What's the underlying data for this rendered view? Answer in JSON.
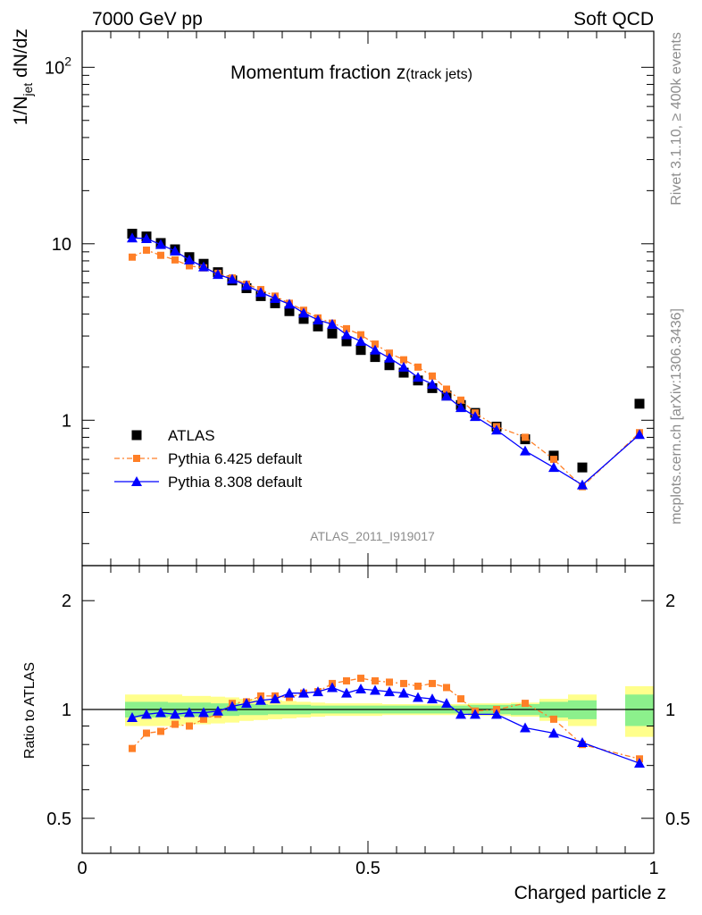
{
  "header": {
    "left": "7000 GeV pp",
    "right": "Soft QCD",
    "side_top": "Rivet 3.1.10, ≥ 400k events",
    "side_bottom": "mcplots.cern.ch [arXiv:1306.3436]"
  },
  "chart_data": [
    {
      "type": "scatter",
      "title": "Momentum fraction",
      "title_var": "z",
      "title_sub": "(track jets)",
      "ylabel_main": "1/N",
      "ylabel_sub": "jet",
      "ylabel_tail": " dN/dz",
      "yscale": "log",
      "ylim": [
        0.15,
        160
      ],
      "xlim": [
        0,
        1
      ],
      "ytick_labels": [
        {
          "value": 1,
          "label": "1"
        },
        {
          "value": 10,
          "label": "10"
        },
        {
          "value": 100,
          "label": "10",
          "sup": "2"
        }
      ],
      "analysis_label": "ATLAS_2011_I919017",
      "legend_position": "left-middle",
      "series": [
        {
          "name": "ATLAS",
          "color": "#000000",
          "marker": "square",
          "x": [
            0.0875,
            0.1125,
            0.1375,
            0.1625,
            0.1875,
            0.2125,
            0.2375,
            0.2625,
            0.2875,
            0.3125,
            0.3375,
            0.3625,
            0.3875,
            0.4125,
            0.4375,
            0.4625,
            0.4875,
            0.5125,
            0.5375,
            0.5625,
            0.5875,
            0.6125,
            0.6375,
            0.6625,
            0.6875,
            0.725,
            0.775,
            0.825,
            0.875,
            0.975
          ],
          "y": [
            11.4,
            11.0,
            10.1,
            9.3,
            8.4,
            7.7,
            6.9,
            6.2,
            5.6,
            5.05,
            4.6,
            4.15,
            3.75,
            3.4,
            3.1,
            2.8,
            2.5,
            2.28,
            2.05,
            1.86,
            1.68,
            1.52,
            1.38,
            1.22,
            1.1,
            0.92,
            0.78,
            0.63,
            0.54,
            1.24
          ]
        },
        {
          "name": "Pythia 6.425 default",
          "color": "#ff7f27",
          "marker": "small-square",
          "x": [
            0.0875,
            0.1125,
            0.1375,
            0.1625,
            0.1875,
            0.2125,
            0.2375,
            0.2625,
            0.2875,
            0.3125,
            0.3375,
            0.3625,
            0.3875,
            0.4125,
            0.4375,
            0.4625,
            0.4875,
            0.5125,
            0.5375,
            0.5625,
            0.5875,
            0.6125,
            0.6375,
            0.6625,
            0.6875,
            0.725,
            0.775,
            0.825,
            0.875,
            0.975
          ],
          "y": [
            8.4,
            9.2,
            8.6,
            8.1,
            7.5,
            7.3,
            6.8,
            6.4,
            5.9,
            5.5,
            5.05,
            4.6,
            4.2,
            3.8,
            3.55,
            3.3,
            3.05,
            2.7,
            2.4,
            2.2,
            2.0,
            1.78,
            1.5,
            1.3,
            1.1,
            0.92,
            0.8,
            0.6,
            0.42,
            0.85
          ]
        },
        {
          "name": "Pythia 8.308 default",
          "color": "#0000ff",
          "marker": "triangle",
          "x": [
            0.0875,
            0.1125,
            0.1375,
            0.1625,
            0.1875,
            0.2125,
            0.2375,
            0.2625,
            0.2875,
            0.3125,
            0.3375,
            0.3625,
            0.3875,
            0.4125,
            0.4375,
            0.4625,
            0.4875,
            0.5125,
            0.5375,
            0.5625,
            0.5875,
            0.6125,
            0.6375,
            0.6625,
            0.6875,
            0.725,
            0.775,
            0.825,
            0.875,
            0.975
          ],
          "y": [
            10.8,
            10.7,
            9.9,
            9.1,
            8.1,
            7.4,
            6.7,
            6.3,
            5.8,
            5.3,
            4.9,
            4.55,
            4.05,
            3.7,
            3.5,
            3.05,
            2.8,
            2.5,
            2.25,
            2.0,
            1.75,
            1.6,
            1.37,
            1.18,
            1.05,
            0.88,
            0.67,
            0.54,
            0.43,
            0.83
          ]
        }
      ]
    },
    {
      "type": "scatter",
      "ylabel": "Ratio to ATLAS",
      "yscale": "log",
      "ylim": [
        0.4,
        2.5
      ],
      "xlim": [
        0,
        1
      ],
      "xlabel": "Charged particle z",
      "xtick_labels": [
        {
          "value": 0,
          "label": "0"
        },
        {
          "value": 0.5,
          "label": "0.5"
        },
        {
          "value": 1,
          "label": "1"
        }
      ],
      "ytick_labels": [
        {
          "value": 0.5,
          "label": "0.5"
        },
        {
          "value": 1,
          "label": "1"
        },
        {
          "value": 2,
          "label": "2"
        }
      ],
      "reference_line": 1,
      "bands": {
        "x_edges": [
          [
            0.075,
            0.1
          ],
          [
            0.1,
            0.125
          ],
          [
            0.125,
            0.15
          ],
          [
            0.15,
            0.175
          ],
          [
            0.175,
            0.2
          ],
          [
            0.2,
            0.225
          ],
          [
            0.225,
            0.25
          ],
          [
            0.25,
            0.275
          ],
          [
            0.275,
            0.3
          ],
          [
            0.3,
            0.325
          ],
          [
            0.325,
            0.35
          ],
          [
            0.35,
            0.375
          ],
          [
            0.375,
            0.4
          ],
          [
            0.4,
            0.425
          ],
          [
            0.425,
            0.45
          ],
          [
            0.45,
            0.475
          ],
          [
            0.475,
            0.5
          ],
          [
            0.5,
            0.525
          ],
          [
            0.525,
            0.55
          ],
          [
            0.55,
            0.575
          ],
          [
            0.575,
            0.6
          ],
          [
            0.6,
            0.625
          ],
          [
            0.625,
            0.65
          ],
          [
            0.65,
            0.675
          ],
          [
            0.675,
            0.7
          ],
          [
            0.7,
            0.75
          ],
          [
            0.75,
            0.8
          ],
          [
            0.8,
            0.85
          ],
          [
            0.85,
            0.9
          ],
          [
            0.95,
            1.0
          ]
        ],
        "stat_color": "#8cf08c",
        "total_color": "#ffff8c",
        "stat": [
          0.05,
          0.05,
          0.05,
          0.045,
          0.045,
          0.045,
          0.04,
          0.04,
          0.035,
          0.035,
          0.03,
          0.03,
          0.03,
          0.025,
          0.025,
          0.025,
          0.025,
          0.025,
          0.025,
          0.025,
          0.025,
          0.025,
          0.025,
          0.025,
          0.03,
          0.03,
          0.035,
          0.05,
          0.06,
          0.1
        ],
        "total": [
          0.1,
          0.1,
          0.1,
          0.1,
          0.09,
          0.09,
          0.085,
          0.08,
          0.07,
          0.065,
          0.06,
          0.055,
          0.05,
          0.045,
          0.04,
          0.04,
          0.04,
          0.04,
          0.035,
          0.035,
          0.035,
          0.035,
          0.035,
          0.035,
          0.04,
          0.04,
          0.045,
          0.07,
          0.1,
          0.16
        ]
      },
      "series": [
        {
          "name": "Pythia 6.425 default",
          "color": "#ff7f27",
          "marker": "small-square",
          "x": [
            0.0875,
            0.1125,
            0.1375,
            0.1625,
            0.1875,
            0.2125,
            0.2375,
            0.2625,
            0.2875,
            0.3125,
            0.3375,
            0.3625,
            0.3875,
            0.4125,
            0.4375,
            0.4625,
            0.4875,
            0.5125,
            0.5375,
            0.5625,
            0.5875,
            0.6125,
            0.6375,
            0.6625,
            0.6875,
            0.725,
            0.775,
            0.825,
            0.875,
            0.975
          ],
          "y": [
            0.78,
            0.86,
            0.87,
            0.91,
            0.9,
            0.94,
            0.97,
            1.04,
            1.05,
            1.09,
            1.09,
            1.08,
            1.11,
            1.12,
            1.18,
            1.2,
            1.22,
            1.2,
            1.19,
            1.18,
            1.16,
            1.18,
            1.15,
            1.07,
            0.99,
            1.0,
            1.04,
            0.94,
            0.8,
            0.73
          ]
        },
        {
          "name": "Pythia 8.308 default",
          "color": "#0000ff",
          "marker": "triangle",
          "x": [
            0.0875,
            0.1125,
            0.1375,
            0.1625,
            0.1875,
            0.2125,
            0.2375,
            0.2625,
            0.2875,
            0.3125,
            0.3375,
            0.3625,
            0.3875,
            0.4125,
            0.4375,
            0.4625,
            0.4875,
            0.5125,
            0.5375,
            0.5625,
            0.5875,
            0.6125,
            0.6375,
            0.6625,
            0.6875,
            0.725,
            0.775,
            0.825,
            0.875,
            0.975
          ],
          "y": [
            0.95,
            0.97,
            0.98,
            0.97,
            0.98,
            0.98,
            0.99,
            1.02,
            1.04,
            1.06,
            1.07,
            1.11,
            1.11,
            1.12,
            1.15,
            1.11,
            1.14,
            1.13,
            1.12,
            1.11,
            1.08,
            1.07,
            1.04,
            0.97,
            0.97,
            0.97,
            0.89,
            0.86,
            0.81,
            0.71
          ]
        }
      ]
    }
  ]
}
